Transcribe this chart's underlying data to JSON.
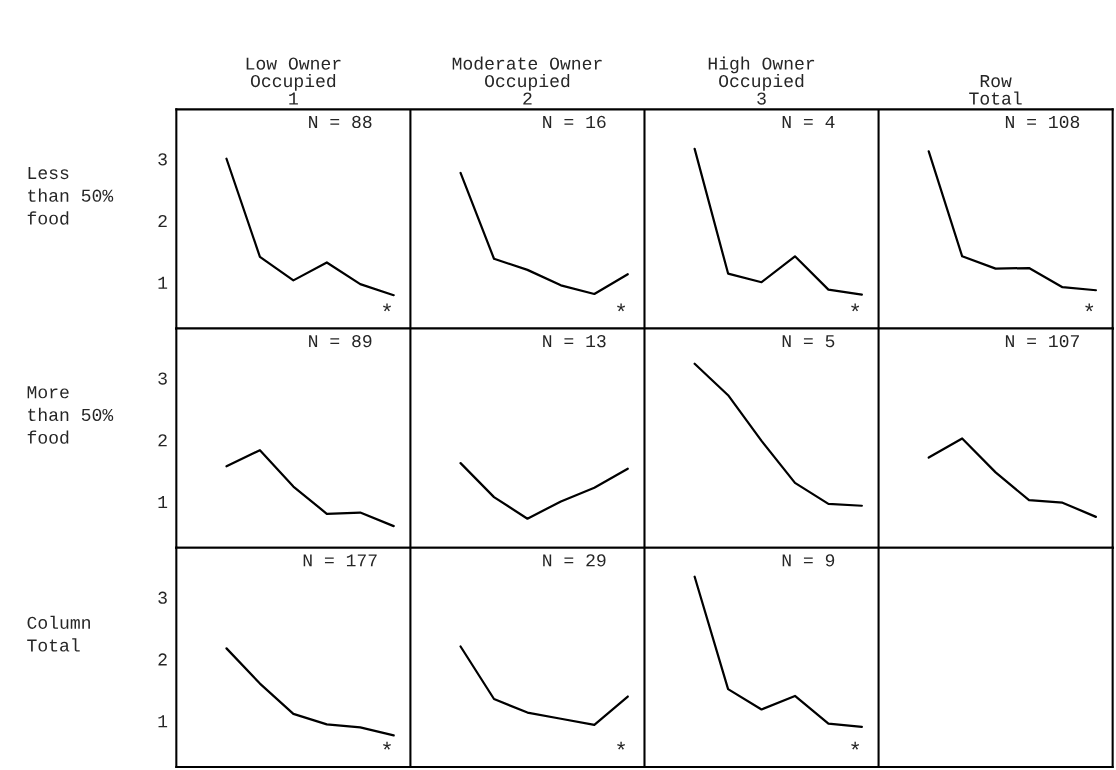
{
  "chart_data": [
    {
      "type": "line",
      "ylabel": "Less\nthan 50%\nfood",
      "categories": [
        null,
        null,
        null,
        null,
        null,
        null,
        null,
        null,
        null,
        null,
        null,
        null,
        null,
        null,
        null,
        null,
        null,
        null,
        null,
        null,
        null,
        null,
        null,
        null,
        null,
        null,
        null,
        null
      ],
      "series": [
        {
          "color": "#000000",
          "values": [
            null,
            3.0,
            1.41,
            1.03,
            1.32,
            0.97,
            0.79,
            null,
            null,
            null,
            null,
            null,
            null,
            null,
            null,
            null,
            null,
            null,
            null,
            null,
            null,
            null,
            null,
            null,
            null,
            null,
            null,
            null
          ]
        },
        {
          "color": "#000000",
          "values": [
            null,
            null,
            null,
            null,
            null,
            null,
            null,
            null,
            2.77,
            1.38,
            1.2,
            0.95,
            0.81,
            1.13,
            null,
            null,
            null,
            null,
            null,
            null,
            null,
            null,
            null,
            null,
            null,
            null,
            null,
            null
          ]
        },
        {
          "color": "#000000",
          "values": [
            null,
            null,
            null,
            null,
            null,
            null,
            null,
            null,
            null,
            null,
            null,
            null,
            null,
            null,
            null,
            3.16,
            1.14,
            1.0,
            1.42,
            0.88,
            0.8,
            null,
            null,
            null,
            null,
            null,
            null,
            null
          ]
        },
        {
          "color": "#000000",
          "values": [
            null,
            null,
            null,
            null,
            null,
            null,
            null,
            null,
            null,
            null,
            null,
            null,
            null,
            null,
            null,
            null,
            null,
            null,
            null,
            null,
            null,
            null,
            3.12,
            1.42,
            1.22,
            1.23,
            0.92,
            0.87
          ]
        }
      ],
      "annotations": [
        "Low Owner\nOccupied\n1",
        "Moderate Owner\nOccupied\n2",
        "High Owner\nOccupied\n3",
        "Row\nTotal",
        "N = 88",
        "N = 16",
        "N = 4",
        "N = 108",
        "*",
        "*",
        "*",
        "*"
      ],
      "ylim": [
        0.25,
        3.8
      ],
      "yticks": [
        1,
        2,
        3
      ],
      "tick_labels": "y"
    },
    {
      "type": "line",
      "ylabel": "More\nthan 50%\nfood",
      "categories": [
        null,
        null,
        null,
        null,
        null,
        null,
        null,
        null,
        null,
        null,
        null,
        null,
        null,
        null,
        null,
        null,
        null,
        null,
        null,
        null,
        null,
        null,
        null,
        null,
        null,
        null,
        null,
        null
      ],
      "series": [
        {
          "color": "#000000",
          "values": [
            null,
            1.57,
            1.83,
            1.24,
            0.8,
            0.82,
            0.6,
            null,
            null,
            null,
            null,
            null,
            null,
            null,
            null,
            null,
            null,
            null,
            null,
            null,
            null,
            null,
            null,
            null,
            null,
            null,
            null,
            null
          ]
        },
        {
          "color": "#000000",
          "values": [
            null,
            null,
            null,
            null,
            null,
            null,
            null,
            null,
            1.62,
            1.07,
            0.72,
            1.0,
            1.22,
            1.53,
            null,
            null,
            null,
            null,
            null,
            null,
            null,
            null,
            null,
            null,
            null,
            null,
            null,
            null
          ]
        },
        {
          "color": "#000000",
          "values": [
            null,
            null,
            null,
            null,
            null,
            null,
            null,
            null,
            null,
            null,
            null,
            null,
            null,
            null,
            null,
            3.23,
            2.72,
            1.98,
            1.3,
            0.96,
            0.93,
            null,
            null,
            null,
            null,
            null,
            null,
            null
          ]
        },
        {
          "color": "#000000",
          "values": [
            null,
            null,
            null,
            null,
            null,
            null,
            null,
            null,
            null,
            null,
            null,
            null,
            null,
            null,
            null,
            null,
            null,
            null,
            null,
            null,
            null,
            null,
            1.71,
            2.02,
            1.47,
            1.02,
            0.98,
            0.75
          ]
        }
      ],
      "annotations": [
        "N = 89",
        "N = 13",
        "N = 5",
        "N = 107"
      ],
      "ylim": [
        0.25,
        3.8
      ],
      "yticks": [
        1,
        2,
        3
      ],
      "tick_labels": "y"
    },
    {
      "type": "line",
      "ylabel": "Column\nTotal",
      "categories": [
        null,
        null,
        null,
        null,
        null,
        null,
        null,
        null,
        null,
        null,
        null,
        null,
        null,
        null,
        null,
        null,
        null,
        null,
        null,
        null,
        null,
        null,
        null,
        null,
        null,
        null,
        null,
        null
      ],
      "series": [
        {
          "color": "#000000",
          "values": [
            null,
            2.17,
            1.6,
            1.11,
            0.94,
            0.89,
            0.76,
            null,
            null,
            null,
            null,
            null,
            null,
            null,
            null,
            null,
            null,
            null,
            null,
            null,
            null,
            null,
            null,
            null,
            null,
            null,
            null,
            null
          ]
        },
        {
          "color": "#000000",
          "values": [
            null,
            null,
            null,
            null,
            null,
            null,
            null,
            null,
            2.2,
            1.35,
            1.13,
            1.03,
            0.93,
            1.39,
            null,
            null,
            null,
            null,
            null,
            null,
            null,
            null,
            null,
            null,
            null,
            null,
            null,
            null
          ]
        },
        {
          "color": "#000000",
          "values": [
            null,
            null,
            null,
            null,
            null,
            null,
            null,
            null,
            null,
            null,
            null,
            null,
            null,
            null,
            null,
            3.33,
            1.51,
            1.18,
            1.4,
            0.95,
            0.9,
            null,
            null,
            null,
            null,
            null,
            null,
            null
          ]
        }
      ],
      "annotations": [
        "N = 177",
        "N = 29",
        "N = 9",
        "*",
        "*",
        "*"
      ],
      "ylim": [
        0.25,
        3.8
      ],
      "yticks": [
        1,
        2,
        3
      ],
      "tick_labels": "y"
    }
  ]
}
